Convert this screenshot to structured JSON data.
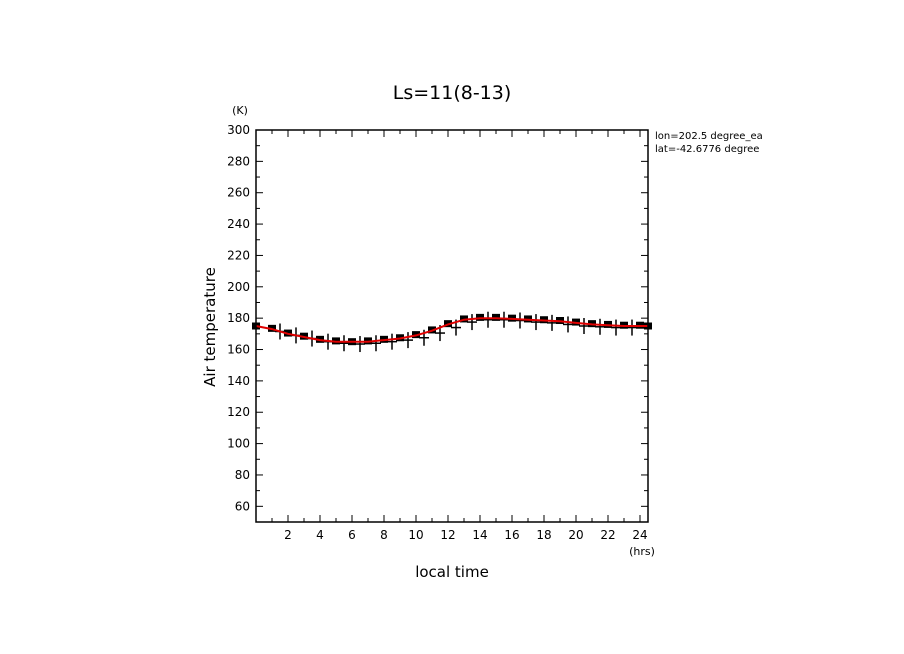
{
  "chart_data": {
    "type": "line",
    "title": "Ls=11(8-13)",
    "xlabel": "local time",
    "ylabel": "Air temperature",
    "x_unit": "(hrs)",
    "y_unit": "(K)",
    "annotations": [
      "lon=202.5 degree_ea",
      "lat=-42.6776 degree"
    ],
    "xlim": [
      0,
      24.5
    ],
    "ylim": [
      50,
      300
    ],
    "x_ticks": [
      2,
      4,
      6,
      8,
      10,
      12,
      14,
      16,
      18,
      20,
      22,
      24
    ],
    "y_ticks": [
      60,
      80,
      100,
      120,
      140,
      160,
      180,
      200,
      220,
      240,
      260,
      280,
      300
    ],
    "grid": false,
    "series": [
      {
        "style": "red-line",
        "color": "#e00000",
        "x": [
          0,
          1,
          2,
          3,
          4,
          5,
          6,
          7,
          8,
          9,
          10,
          11,
          12,
          13,
          14,
          15,
          16,
          17,
          18,
          19,
          20,
          21,
          22,
          23,
          24,
          24.5
        ],
        "y": [
          175,
          173,
          170,
          168,
          166,
          165,
          165,
          165,
          166,
          167,
          169,
          172,
          176,
          179,
          180,
          180,
          179.5,
          179,
          178.5,
          178,
          177,
          176,
          175.5,
          175,
          175,
          175
        ]
      },
      {
        "style": "square-markers",
        "color": "#000000",
        "x": [
          0,
          1,
          2,
          3,
          4,
          5,
          6,
          7,
          8,
          9,
          10,
          11,
          12,
          13,
          14,
          15,
          16,
          17,
          18,
          19,
          20,
          21,
          22,
          23,
          24,
          24.5
        ],
        "y": [
          175,
          173.5,
          170.5,
          168.5,
          166.5,
          165.5,
          165,
          165.5,
          166.5,
          167.5,
          169.5,
          172.5,
          176.5,
          179.5,
          180.5,
          180.5,
          180,
          179.5,
          179,
          178.5,
          177.5,
          176.5,
          176,
          175.5,
          175.5,
          175
        ]
      },
      {
        "style": "plus-markers",
        "color": "#000000",
        "x": [
          1.5,
          2.5,
          3.5,
          4.5,
          5.5,
          6.5,
          7.5,
          8.5,
          9.5,
          10.5,
          11.5,
          12.5,
          13.5,
          14.5,
          15.5,
          16.5,
          17.5,
          18.5,
          19.5,
          20.5,
          21.5,
          22.5,
          23.5
        ],
        "y": [
          171.5,
          169,
          167,
          165,
          164,
          163.5,
          164,
          165,
          166,
          167.5,
          170.5,
          174,
          177.5,
          179,
          179,
          178.5,
          177.5,
          177,
          176,
          175,
          174.5,
          174,
          174
        ]
      }
    ]
  }
}
